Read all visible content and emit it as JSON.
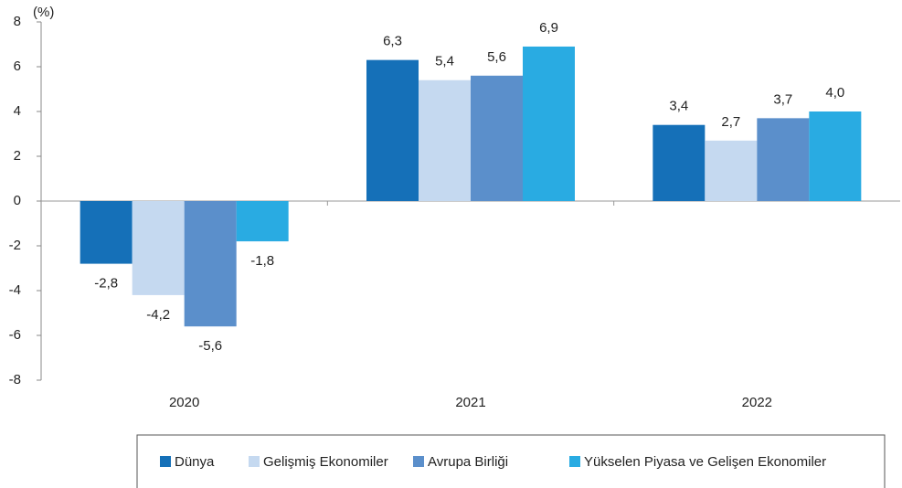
{
  "chart_data": {
    "type": "bar",
    "y_label": "(%)",
    "categories": [
      "2020",
      "2021",
      "2022"
    ],
    "series": [
      {
        "name": "Dünya",
        "color": "#1570b8",
        "values": [
          -2.8,
          6.3,
          3.4
        ],
        "value_labels": [
          "-2,8",
          "6,3",
          "3,4"
        ]
      },
      {
        "name": "Gelişmiş Ekonomiler",
        "color": "#c5d9f0",
        "values": [
          -4.2,
          5.4,
          2.7
        ],
        "value_labels": [
          "-4,2",
          "5,4",
          "2,7"
        ]
      },
      {
        "name": "Avrupa Birliği",
        "color": "#5b8fcb",
        "values": [
          -5.6,
          5.6,
          3.7
        ],
        "value_labels": [
          "-5,6",
          "5,6",
          "3,7"
        ]
      },
      {
        "name": "Yükselen Piyasa ve Gelişen Ekonomiler",
        "color": "#29abe2",
        "values": [
          -1.8,
          6.9,
          4.0
        ],
        "value_labels": [
          "-1,8",
          "6,9",
          "4,0"
        ]
      }
    ],
    "ylim": [
      -8,
      8
    ],
    "yticks": [
      -8,
      -6,
      -4,
      -2,
      0,
      2,
      4,
      6,
      8
    ]
  }
}
